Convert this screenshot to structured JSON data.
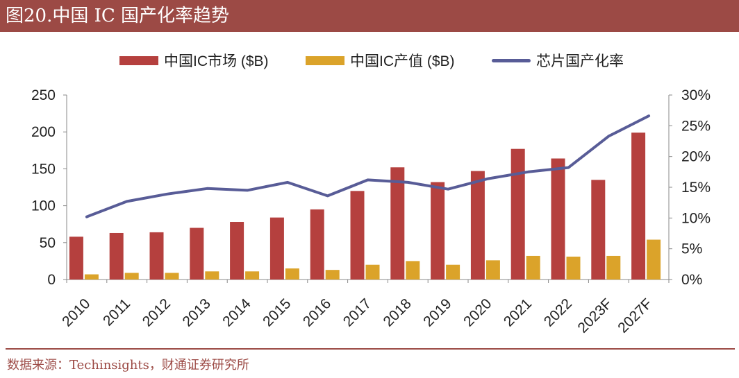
{
  "header": {
    "title": "图20.中国 IC 国产化率趋势"
  },
  "footer": {
    "source": "数据来源：Techinsights，财通证券研究所"
  },
  "colors": {
    "title_bg": "#9c4a45",
    "market": "#b5403e",
    "output": "#dba32a",
    "rate": "#585c97"
  },
  "chart_data": {
    "type": "bar",
    "categories": [
      "2010",
      "2011",
      "2012",
      "2013",
      "2014",
      "2015",
      "2016",
      "2017",
      "2018",
      "2019",
      "2020",
      "2021",
      "2022",
      "2023F",
      "2027F"
    ],
    "series": [
      {
        "name": "中国IC市场 ($B)",
        "kind": "bar",
        "axis": "left",
        "values": [
          58,
          63,
          64,
          70,
          78,
          84,
          95,
          120,
          152,
          132,
          147,
          177,
          164,
          135,
          199
        ]
      },
      {
        "name": "中国IC产值 ($B)",
        "kind": "bar",
        "axis": "left",
        "values": [
          7,
          9,
          9,
          11,
          11,
          15,
          13,
          20,
          25,
          20,
          26,
          32,
          31,
          32,
          54
        ]
      },
      {
        "name": "芯片国产化率",
        "kind": "line",
        "axis": "right",
        "values": [
          10.2,
          12.7,
          13.9,
          14.8,
          14.5,
          15.8,
          13.6,
          16.2,
          15.8,
          14.7,
          16.4,
          17.5,
          18.2,
          23.3,
          26.6
        ]
      }
    ],
    "y_left": {
      "lim": [
        0,
        250
      ],
      "ticks": [
        "0",
        "50",
        "100",
        "150",
        "200",
        "250"
      ]
    },
    "y_right": {
      "lim": [
        0,
        30
      ],
      "ticks": [
        "0%",
        "5%",
        "10%",
        "15%",
        "20%",
        "25%",
        "30%"
      ]
    },
    "grid": false,
    "legend_position": "top-center"
  }
}
